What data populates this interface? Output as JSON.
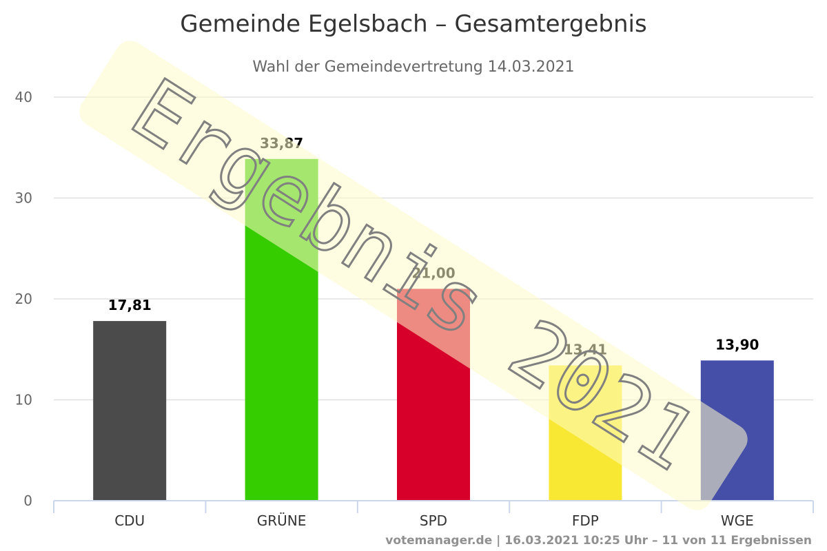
{
  "chart_data": {
    "type": "bar",
    "title": "Gemeinde Egelsbach – Gesamtergebnis",
    "subtitle": "Wahl der Gemeindevertretung 14.03.2021",
    "categories": [
      "CDU",
      "GRÜNE",
      "SPD",
      "FDP",
      "WGE"
    ],
    "values": [
      17.81,
      33.87,
      21.0,
      13.41,
      13.9
    ],
    "value_labels": [
      "17,81",
      "33,87",
      "21,00",
      "13,41",
      "13,90"
    ],
    "colors": [
      "#4b4b4b",
      "#35cc00",
      "#d7002b",
      "#f9e833",
      "#454fa8"
    ],
    "ylim": [
      0,
      40
    ],
    "yticks": [
      0,
      10,
      20,
      30,
      40
    ],
    "xlabel": "",
    "ylabel": "",
    "grid": true,
    "legend": "none"
  },
  "watermark": {
    "text": "Ergebnis 2021"
  },
  "credits": {
    "text": "votemanager.de | 16.03.2021 10:25 Uhr – 11 von 11 Ergebnissen"
  }
}
